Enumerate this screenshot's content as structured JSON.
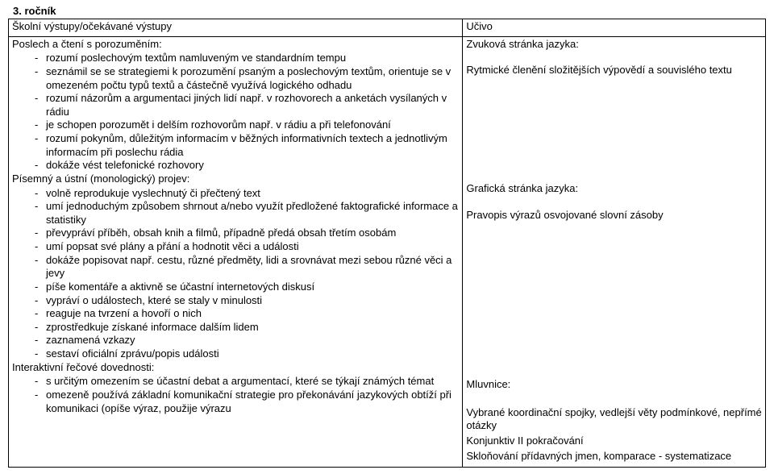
{
  "heading": "3. ročník",
  "table": {
    "header_left": "Školní výstupy/očekávané výstupy",
    "header_right": "Učivo",
    "left": {
      "sec1_title": "Poslech a čtení s porozuměním:",
      "sec1_items": [
        "rozumí poslechovým textům namluveným ve standardním tempu",
        "seznámil se se strategiemi k porozumění psaným a poslechovým textům, orientuje se v omezeném počtu typů textů a částečně využívá logického odhadu",
        "rozumí názorům a argumentaci jiných lidí např. v rozhovorech a anketách vysílaných v rádiu",
        "je schopen porozumět i delším rozhovorům např. v rádiu a při telefonování",
        "rozumí pokynům, důležitým informacím v běžných informativních textech a jednotlivým informacím při poslechu rádia",
        "dokáže vést telefonické rozhovory"
      ],
      "sec2_title": "Písemný a ústní (monologický) projev:",
      "sec2_items": [
        "volně reprodukuje vyslechnutý či přečtený text",
        "umí jednoduchým způsobem shrnout a/nebo využít předložené faktografické informace a statistiky",
        "převypráví příběh, obsah knih a filmů, případně předá obsah třetím osobám",
        "umí popsat své plány a přání a hodnotit věci a události",
        "dokáže popisovat např. cestu, různé předměty, lidi a srovnávat mezi sebou různé věci a jevy",
        "píše komentáře a aktivně se účastní internetových diskusí",
        "vypráví o událostech, které se staly v minulosti",
        "reaguje na tvrzení a hovoří o nich",
        "zprostředkuje získané informace dalším lidem",
        "zaznamená vzkazy",
        "sestaví oficiální zprávu/popis události"
      ],
      "sec3_title": "Interaktivní řečové dovednosti:",
      "sec3_items": [
        "s určitým omezením se účastní debat a argumentací, které se týkají známých témat",
        "omezeně používá základní komunikační strategie pro překonávání jazykových obtíží při komunikaci (opíše výraz, použije výrazu"
      ]
    },
    "right": {
      "r1": "Zvuková stránka jazyka:",
      "r2": "Rytmické členění složitějších výpovědí a souvislého textu",
      "r3": "Grafická stránka jazyka:",
      "r4": "Pravopis výrazů osvojované slovní zásoby",
      "r5": "Mluvnice:",
      "r6": "Vybrané koordinační spojky, vedlejší věty podmínkové, nepřímé otázky",
      "r7": "Konjunktiv II pokračování",
      "r8": "Skloňování přídavných jmen, komparace - systematizace"
    }
  }
}
